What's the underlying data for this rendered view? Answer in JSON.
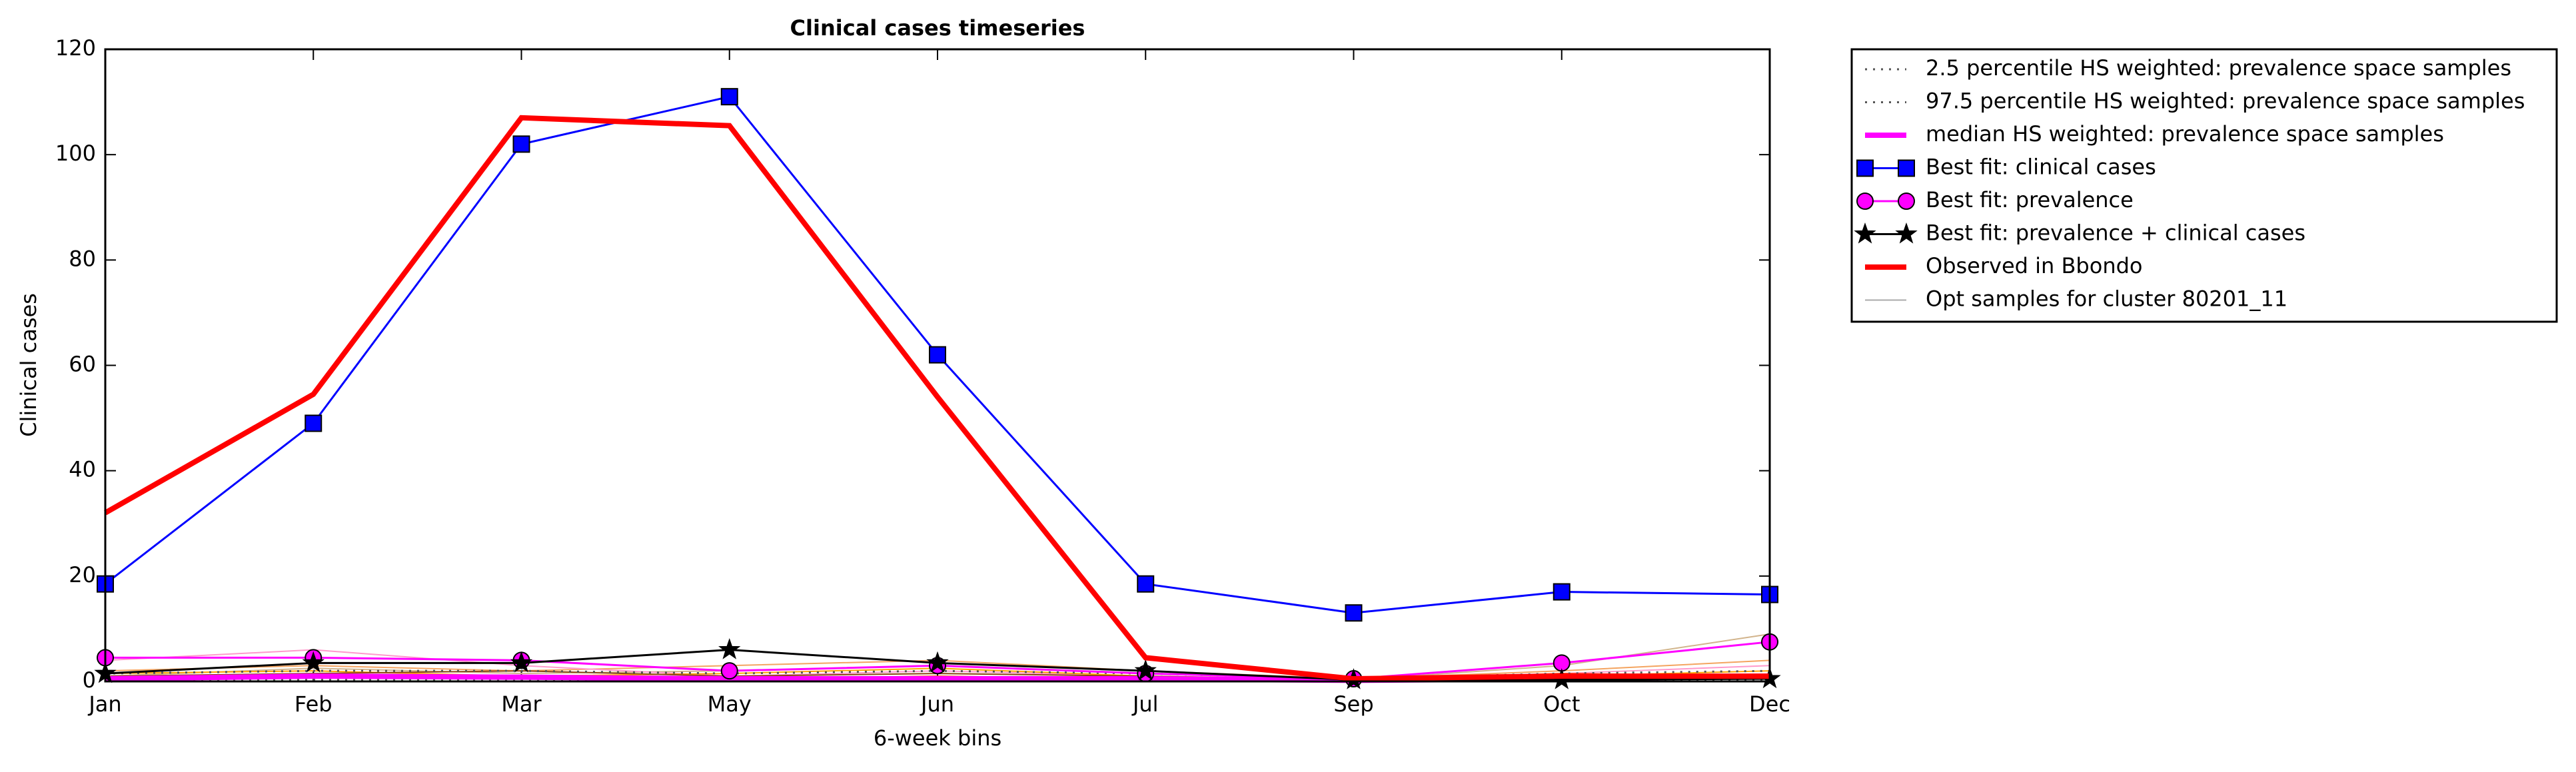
{
  "chart_data": {
    "type": "line",
    "title": "Clinical cases timeseries",
    "x_label": "6-week bins",
    "y_label": "Clinical cases",
    "categories": [
      "Jan",
      "Feb",
      "Mar",
      "May",
      "Jun",
      "Jul",
      "Sep",
      "Oct",
      "Dec"
    ],
    "ylim": [
      0,
      120
    ],
    "yticks": [
      0,
      20,
      40,
      60,
      80,
      100,
      120
    ],
    "legend": "outside-upper-right",
    "samples": {
      "name": "Opt samples for cluster 80201_11",
      "color": "#aaaaaa",
      "lines": [
        {
          "color": "#f4a460",
          "values": [
            2,
            3,
            2,
            3,
            4,
            2,
            0.5,
            2,
            4
          ]
        },
        {
          "color": "#d2b48c",
          "values": [
            1,
            2.5,
            1.5,
            2,
            3,
            1.5,
            0.3,
            3,
            9
          ]
        },
        {
          "color": "#ff99cc",
          "values": [
            4,
            6,
            3,
            1,
            2,
            1,
            0.5,
            1.5,
            3
          ]
        },
        {
          "color": "#ffa500",
          "values": [
            1.5,
            2,
            1,
            1.5,
            2.5,
            1,
            0.3,
            1,
            2
          ]
        },
        {
          "color": "#ff4500",
          "values": [
            0.5,
            1,
            0.8,
            0.5,
            1,
            0.5,
            0.2,
            1.5,
            1
          ]
        },
        {
          "color": "#8b4513",
          "values": [
            1,
            1.5,
            2,
            1,
            1.5,
            1,
            0.3,
            0.5,
            0.5
          ]
        }
      ]
    },
    "series": [
      {
        "name": "2.5 percentile HS weighted: prevalence space samples",
        "color": "#555555",
        "style": "dotted",
        "marker": "none",
        "values": [
          0.2,
          0.3,
          0.3,
          0.2,
          0.3,
          0.2,
          0.1,
          0.2,
          0.3
        ]
      },
      {
        "name": "97.5 percentile HS weighted: prevalence space samples",
        "color": "#555555",
        "style": "dotted",
        "marker": "none",
        "values": [
          1.5,
          2,
          2,
          1.5,
          2,
          1.5,
          0.5,
          1.5,
          2
        ]
      },
      {
        "name": "median HS weighted: prevalence space samples",
        "color": "#ff00ff",
        "style": "thick",
        "marker": "none",
        "values": [
          0.5,
          1,
          0.8,
          0.5,
          0.5,
          0.5,
          0.2,
          0.5,
          1
        ]
      },
      {
        "name": "Best fit: clinical cases",
        "color": "#0000ff",
        "style": "solid",
        "marker": "square",
        "values": [
          18.5,
          49,
          102,
          111,
          62,
          18.5,
          13,
          17,
          16.5
        ]
      },
      {
        "name": "Best fit: prevalence",
        "color": "#ff00ff",
        "style": "solid",
        "marker": "circle",
        "values": [
          4.5,
          4.5,
          4,
          2,
          3,
          1.5,
          0.5,
          3.5,
          7.5
        ]
      },
      {
        "name": "Best fit: prevalence + clinical cases",
        "color": "#000000",
        "style": "solid",
        "marker": "star",
        "values": [
          1.5,
          3.5,
          3.5,
          6,
          3.5,
          2,
          0.3,
          0.3,
          0.5
        ]
      },
      {
        "name": "Observed in Bbondo",
        "color": "#ff0000",
        "style": "thick",
        "marker": "none",
        "values": [
          32,
          54.5,
          107,
          105.5,
          54,
          4.5,
          0.5,
          1,
          1
        ]
      }
    ]
  }
}
